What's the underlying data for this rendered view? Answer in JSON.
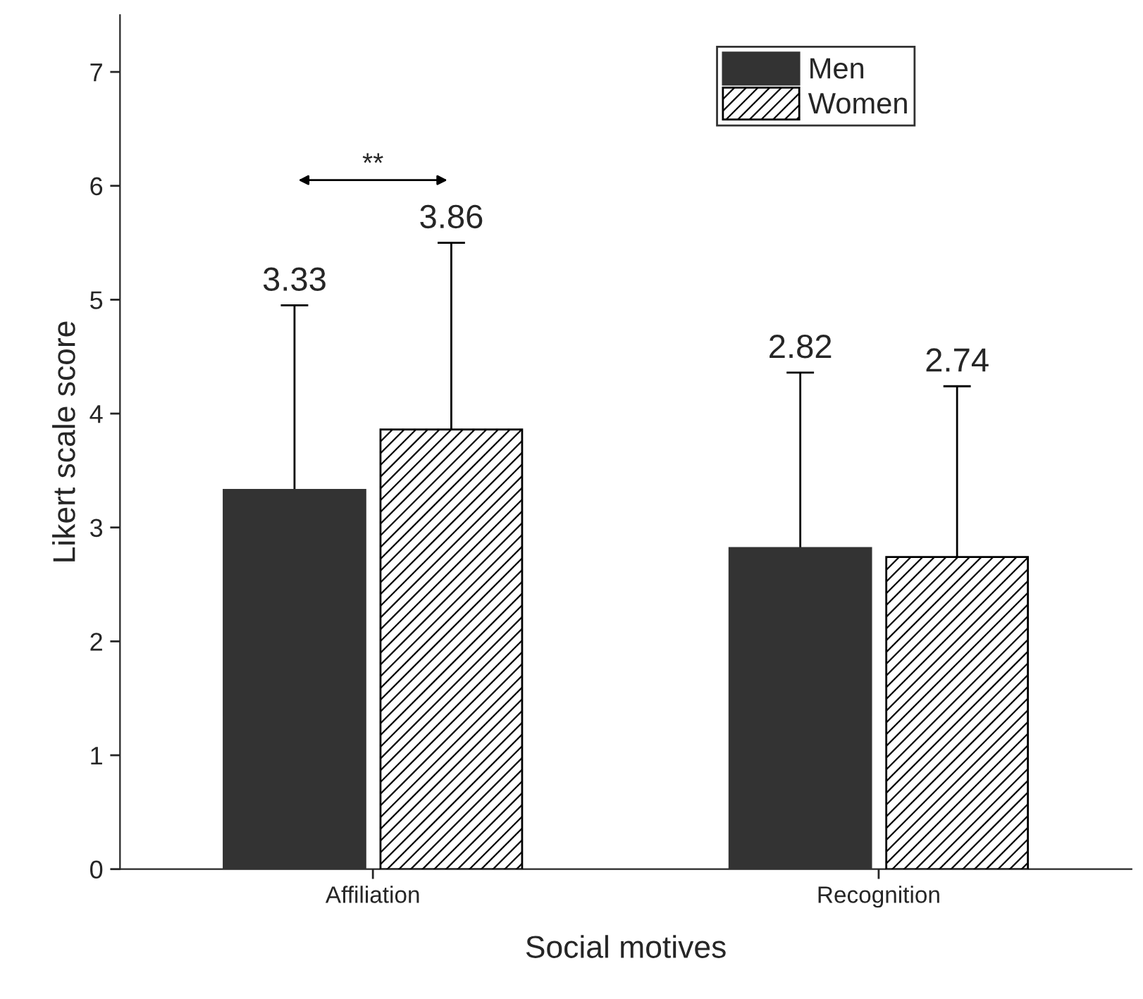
{
  "chart_data": {
    "type": "bar",
    "xlabel": "Social motives",
    "ylabel": "Likert scale score",
    "categories": [
      "Affiliation",
      "Recognition"
    ],
    "series": [
      {
        "name": "Men",
        "color": "#333333",
        "values": [
          3.33,
          2.82
        ],
        "errors": [
          1.62,
          1.54
        ]
      },
      {
        "name": "Women",
        "color": "#000000",
        "values": [
          3.86,
          2.74
        ],
        "errors": [
          1.64,
          1.5
        ]
      }
    ],
    "ylim": [
      0,
      7.5
    ],
    "yticks": [
      0,
      1,
      2,
      3,
      4,
      5,
      6,
      7
    ],
    "legend": "top right",
    "grid": false,
    "annotations": [
      "**",
      "3.33",
      "3.86",
      "2.82",
      "2.74"
    ]
  }
}
